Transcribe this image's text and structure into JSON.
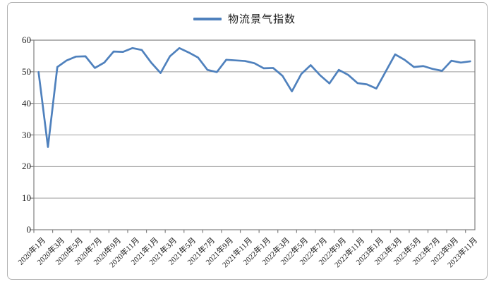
{
  "legend": {
    "label": "物流景气指数",
    "line_color": "#4F81BD"
  },
  "colors": {
    "series": "#4F81BD",
    "gridline": "#9c9c9c",
    "axis": "#808080",
    "frame_border": "#b3b3b3",
    "text": "#1a1a1a",
    "background": "#ffffff"
  },
  "chart_data": {
    "type": "line",
    "title": "物流景气指数",
    "xlabel": "",
    "ylabel": "",
    "ylim": [
      0,
      60
    ],
    "yticks": [
      0,
      10,
      20,
      30,
      40,
      50,
      60
    ],
    "grid": "horizontal",
    "legend_position": "top",
    "x_tick_every": 2,
    "x_tick_labels": [
      "2020年1月",
      "2020年3月",
      "2020年5月",
      "2020年7月",
      "2020年9月",
      "2020年11月",
      "2021年1月",
      "2021年3月",
      "2021年5月",
      "2021年7月",
      "2021年9月",
      "2021年11月",
      "2022年1月",
      "2022年3月",
      "2022年5月",
      "2022年7月",
      "2022年9月",
      "2022年11月",
      "2023年1月",
      "2023年3月",
      "2023年5月",
      "2023年7月",
      "2023年9月",
      "2023年11月"
    ],
    "categories": [
      "2020年1月",
      "2020年2月",
      "2020年3月",
      "2020年4月",
      "2020年5月",
      "2020年6月",
      "2020年7月",
      "2020年8月",
      "2020年9月",
      "2020年10月",
      "2020年11月",
      "2020年12月",
      "2021年1月",
      "2021年2月",
      "2021年3月",
      "2021年4月",
      "2021年5月",
      "2021年6月",
      "2021年7月",
      "2021年8月",
      "2021年9月",
      "2021年10月",
      "2021年11月",
      "2021年12月",
      "2022年1月",
      "2022年2月",
      "2022年3月",
      "2022年4月",
      "2022年5月",
      "2022年6月",
      "2022年7月",
      "2022年8月",
      "2022年9月",
      "2022年10月",
      "2022年11月",
      "2022年12月",
      "2023年1月",
      "2023年2月",
      "2023年3月",
      "2023年4月",
      "2023年5月",
      "2023年6月",
      "2023年7月",
      "2023年8月",
      "2023年9月",
      "2023年10月",
      "2023年11月"
    ],
    "series": [
      {
        "name": "物流景气指数",
        "color": "#4F81BD",
        "values": [
          49.9,
          26.2,
          51.5,
          53.6,
          54.8,
          54.9,
          51.2,
          52.9,
          56.4,
          56.3,
          57.5,
          56.9,
          52.9,
          49.6,
          54.9,
          57.5,
          56.1,
          54.5,
          50.6,
          49.9,
          53.8,
          53.6,
          53.4,
          52.7,
          51.1,
          51.2,
          48.7,
          43.8,
          49.3,
          52.1,
          48.9,
          46.3,
          50.6,
          49.0,
          46.4,
          46.0,
          44.7,
          50.1,
          55.5,
          53.8,
          51.5,
          51.8,
          50.9,
          50.3,
          53.5,
          52.9,
          53.3
        ]
      }
    ]
  }
}
